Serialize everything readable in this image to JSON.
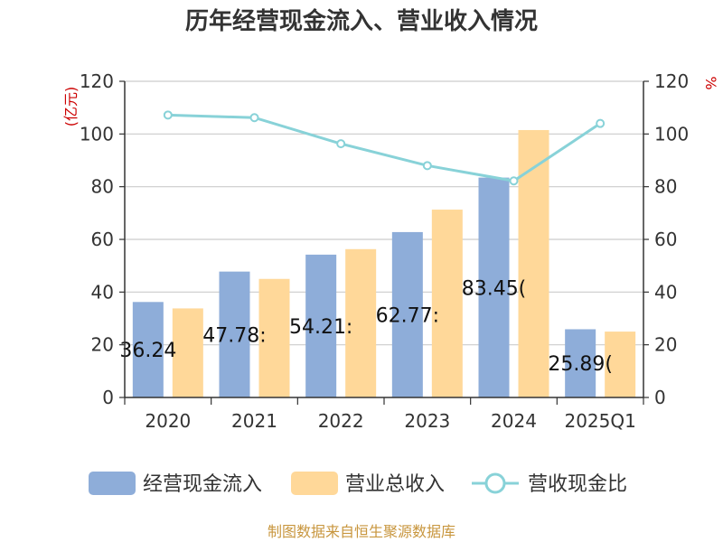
{
  "chart_data": {
    "type": "bar",
    "title": "历年经营现金流入、营业收入情况",
    "categories": [
      "2020",
      "2021",
      "2022",
      "2023",
      "2024",
      "2025Q1"
    ],
    "y_left": {
      "unit": "(亿元)",
      "range": [
        0,
        120
      ],
      "ticks": [
        "0",
        "20",
        "40",
        "60",
        "80",
        "100",
        "120"
      ]
    },
    "y_right": {
      "unit": "%",
      "range": [
        0,
        120
      ],
      "ticks": [
        "0",
        "20",
        "40",
        "60",
        "80",
        "100",
        "120"
      ]
    },
    "series": [
      {
        "name": "经营现金流入",
        "type": "bar",
        "axis": "left",
        "color": "#8eadd9",
        "values": [
          36.24,
          47.78,
          54.21,
          62.77,
          83.45,
          25.89
        ],
        "labels": [
          "36.24",
          "47.78:",
          "54.21:",
          "62.77:",
          "83.45(",
          "25.89("
        ]
      },
      {
        "name": "营业总收入",
        "type": "bar",
        "axis": "left",
        "color": "#ffd899",
        "values": [
          33.8,
          45.0,
          56.3,
          71.3,
          101.5,
          25.0
        ]
      },
      {
        "name": "营收现金比",
        "type": "line",
        "axis": "right",
        "color": "#88d2d8",
        "values": [
          107.2,
          106.2,
          96.3,
          88.0,
          82.2,
          104.0
        ]
      }
    ],
    "grid": true,
    "legend_position": "bottom"
  },
  "source_text": "制图数据来自恒生聚源数据库"
}
